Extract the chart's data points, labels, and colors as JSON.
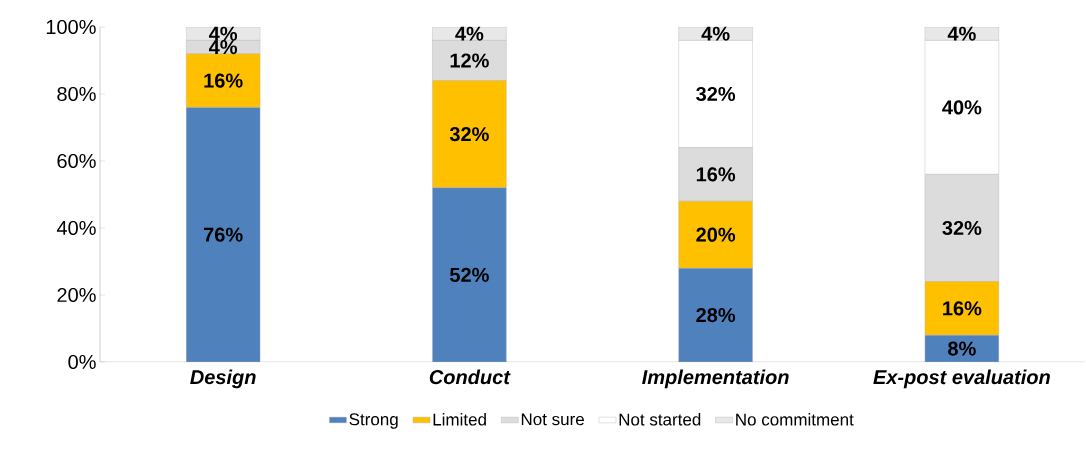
{
  "chart_data": {
    "type": "bar",
    "stacked": true,
    "categories": [
      "Design",
      "Conduct",
      "Implementation",
      "Ex-post evaluation"
    ],
    "ylim": [
      0,
      100
    ],
    "yticks": [
      {
        "value": 0,
        "label": "0%"
      },
      {
        "value": 20,
        "label": "20%"
      },
      {
        "value": 40,
        "label": "40%"
      },
      {
        "value": 60,
        "label": "60%"
      },
      {
        "value": 80,
        "label": "80%"
      },
      {
        "value": 100,
        "label": "100%"
      }
    ],
    "legend": "bottom",
    "series": [
      {
        "name": "Strong",
        "color": "#4f81bd",
        "values": [
          76,
          52,
          28,
          8
        ],
        "value_labels": [
          "76%",
          "52%",
          "28%",
          "8%"
        ]
      },
      {
        "name": "Limited",
        "color": "#ffc000",
        "values": [
          16,
          32,
          20,
          16
        ],
        "value_labels": [
          "16%",
          "32%",
          "20%",
          "16%"
        ]
      },
      {
        "name": "Not sure",
        "color": "#dcdcdc",
        "values": [
          4,
          12,
          16,
          32
        ],
        "value_labels": [
          "4%",
          "12%",
          "16%",
          "32%"
        ]
      },
      {
        "name": "Not started",
        "color": "#ffffff",
        "values": [
          0,
          0,
          32,
          40
        ],
        "value_labels": [
          null,
          null,
          "32%",
          "40%"
        ]
      },
      {
        "name": "No commitment",
        "color": "#e8e8e8",
        "values": [
          4,
          4,
          4,
          4
        ],
        "value_labels": [
          "4%",
          "4%",
          "4%",
          "4%"
        ]
      }
    ]
  }
}
